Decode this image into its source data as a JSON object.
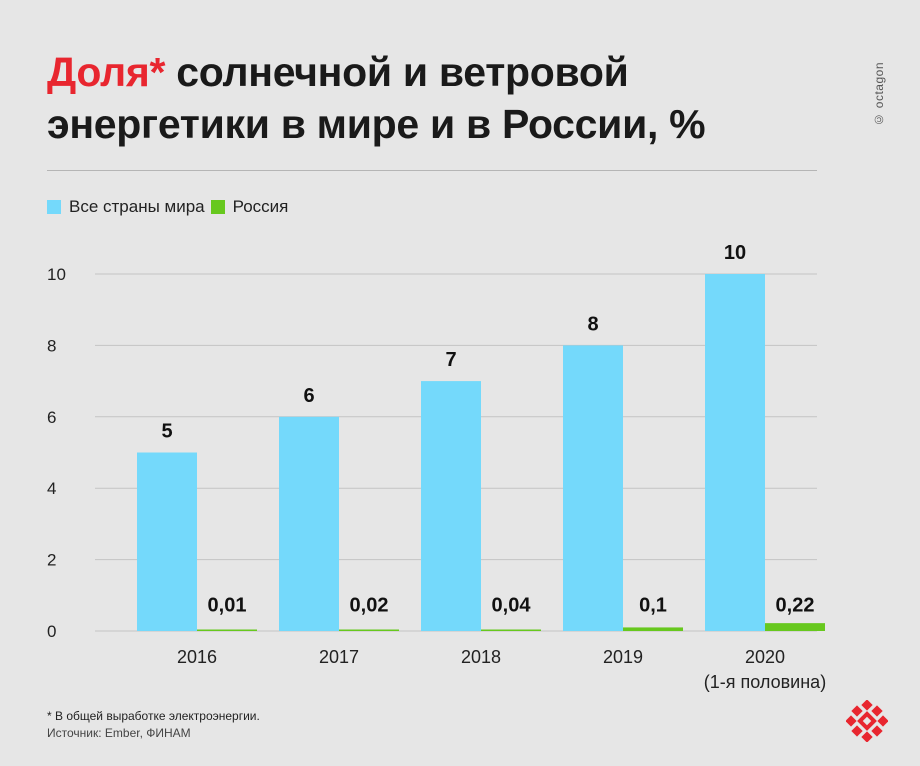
{
  "header": {
    "title_accent": "Доля*",
    "title_rest": "солнечной и ветровой энергетики в мире и в России, %"
  },
  "watermark": "© octagon",
  "legend": {
    "world": "Все страны мира",
    "russia": "Россия"
  },
  "footnote": {
    "note": "* В общей выработке электроэнергии.",
    "source": "Источник: Ember, ФИНАМ"
  },
  "colors": {
    "world": "#74d9fb",
    "russia": "#67c81e",
    "accent": "#e8262f",
    "grid": "#c4c4c4"
  },
  "logo_icon": "octagon-logo-icon",
  "chart_data": {
    "type": "bar",
    "categories": [
      "2016",
      "2017",
      "2018",
      "2019",
      "2020"
    ],
    "category_sublabels": [
      "",
      "",
      "",
      "",
      "(1-я половина)"
    ],
    "series": [
      {
        "name": "Все страны мира",
        "values": [
          5,
          6,
          7,
          8,
          10
        ],
        "labels": [
          "5",
          "6",
          "7",
          "8",
          "10"
        ]
      },
      {
        "name": "Россия",
        "values": [
          0.01,
          0.02,
          0.04,
          0.1,
          0.22
        ],
        "labels": [
          "0,01",
          "0,02",
          "0,04",
          "0,1",
          "0,22"
        ]
      }
    ],
    "yticks": [
      0,
      2,
      4,
      6,
      8,
      10
    ],
    "ylim": [
      0,
      10
    ],
    "grid": true,
    "legend_position": "top-left"
  }
}
